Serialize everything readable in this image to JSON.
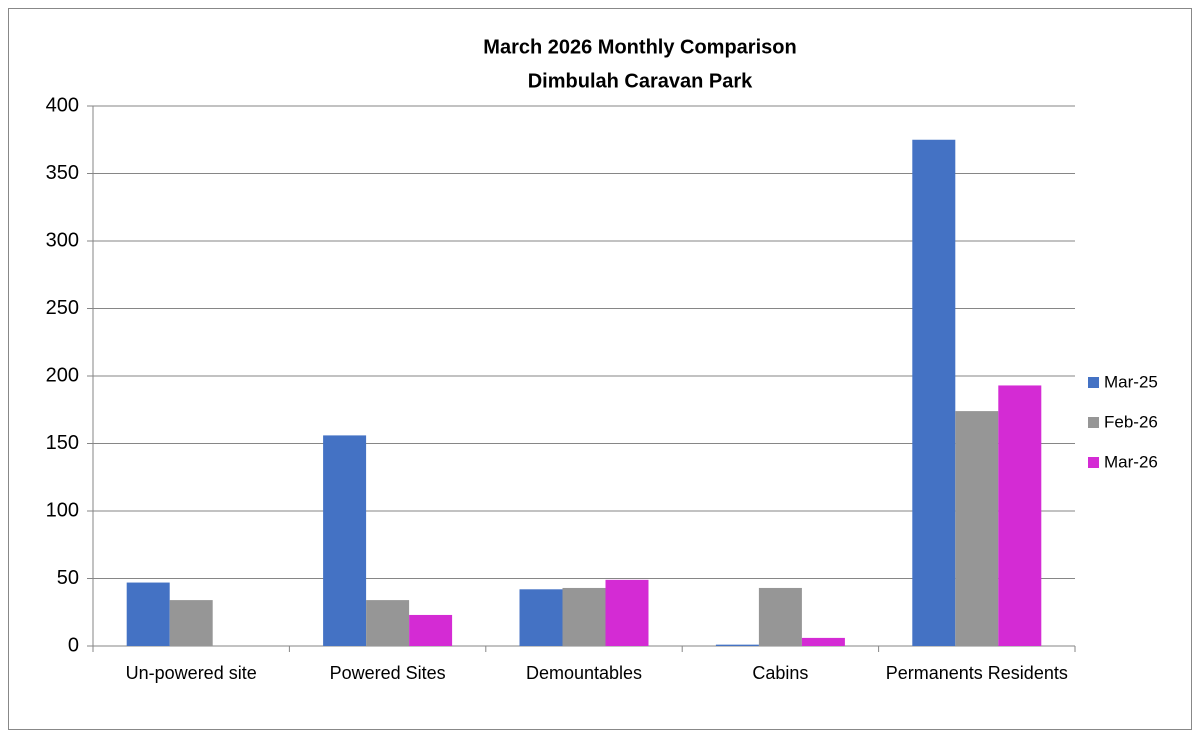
{
  "chart_data": {
    "type": "bar",
    "title": "March 2026 Monthly Comparison",
    "subtitle": "Dimbulah Caravan Park",
    "categories": [
      "Un-powered site",
      "Powered Sites",
      "Demountables",
      "Cabins",
      "Permanents Residents"
    ],
    "series": [
      {
        "name": "Mar-25",
        "color": "#4472c4",
        "values": [
          47,
          156,
          42,
          1,
          375
        ]
      },
      {
        "name": "Feb-26",
        "color": "#969696",
        "values": [
          34,
          34,
          43,
          43,
          174
        ]
      },
      {
        "name": "Mar-26",
        "color": "#d42bd4",
        "values": [
          0,
          23,
          49,
          6,
          193
        ]
      }
    ],
    "ylim": [
      0,
      400
    ],
    "yticks": [
      0,
      50,
      100,
      150,
      200,
      250,
      300,
      350,
      400
    ],
    "grid": true,
    "legend": "right"
  }
}
